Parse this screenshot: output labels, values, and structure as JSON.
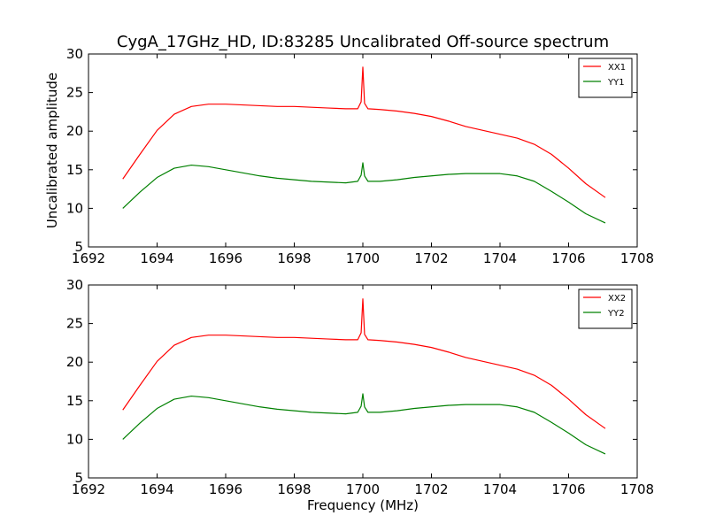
{
  "figure": {
    "title": "CygA_17GHz_HD, ID:83285 Uncalibrated Off-source spectrum"
  },
  "chart_data": [
    {
      "type": "line",
      "title": "CygA_17GHz_HD, ID:83285 Uncalibrated Off-source spectrum",
      "xlabel": "",
      "ylabel": "Uncalibrated amplitude",
      "xlim": [
        1692,
        1708
      ],
      "ylim": [
        5,
        30
      ],
      "xticks": [
        1692,
        1694,
        1696,
        1698,
        1700,
        1702,
        1704,
        1706,
        1708
      ],
      "yticks": [
        5,
        10,
        15,
        20,
        25,
        30
      ],
      "legend": "top-right",
      "grid": false,
      "series": [
        {
          "name": "XX1",
          "color": "#ff0000",
          "x": [
            1693.0,
            1693.5,
            1694.0,
            1694.5,
            1695.0,
            1695.5,
            1696.0,
            1696.5,
            1697.0,
            1697.5,
            1698.0,
            1698.5,
            1699.0,
            1699.5,
            1699.85,
            1699.95,
            1700.0,
            1700.05,
            1700.15,
            1700.5,
            1701.0,
            1701.5,
            1702.0,
            1702.5,
            1703.0,
            1703.5,
            1704.0,
            1704.5,
            1705.0,
            1705.5,
            1706.0,
            1706.5,
            1707.07
          ],
          "y": [
            13.8,
            17.0,
            20.1,
            22.2,
            23.2,
            23.5,
            23.5,
            23.4,
            23.3,
            23.2,
            23.2,
            23.1,
            23.0,
            22.9,
            22.9,
            23.8,
            28.3,
            23.6,
            22.9,
            22.8,
            22.6,
            22.3,
            21.9,
            21.3,
            20.6,
            20.1,
            19.6,
            19.1,
            18.3,
            17.0,
            15.2,
            13.2,
            11.4
          ]
        },
        {
          "name": "YY1",
          "color": "#008000",
          "x": [
            1693.0,
            1693.5,
            1694.0,
            1694.5,
            1695.0,
            1695.5,
            1696.0,
            1696.5,
            1697.0,
            1697.5,
            1698.0,
            1698.5,
            1699.0,
            1699.5,
            1699.85,
            1699.95,
            1700.0,
            1700.05,
            1700.15,
            1700.5,
            1701.0,
            1701.5,
            1702.0,
            1702.5,
            1703.0,
            1703.5,
            1704.0,
            1704.5,
            1705.0,
            1705.5,
            1706.0,
            1706.5,
            1707.07
          ],
          "y": [
            10.0,
            12.1,
            14.0,
            15.2,
            15.6,
            15.4,
            15.0,
            14.6,
            14.2,
            13.9,
            13.7,
            13.5,
            13.4,
            13.3,
            13.5,
            14.3,
            15.9,
            14.2,
            13.5,
            13.5,
            13.7,
            14.0,
            14.2,
            14.4,
            14.5,
            14.5,
            14.5,
            14.2,
            13.5,
            12.2,
            10.8,
            9.3,
            8.1
          ]
        }
      ]
    },
    {
      "type": "line",
      "title": "",
      "xlabel": "Frequency (MHz)",
      "ylabel": "",
      "xlim": [
        1692,
        1708
      ],
      "ylim": [
        5,
        30
      ],
      "xticks": [
        1692,
        1694,
        1696,
        1698,
        1700,
        1702,
        1704,
        1706,
        1708
      ],
      "yticks": [
        5,
        10,
        15,
        20,
        25,
        30
      ],
      "legend": "top-right",
      "grid": false,
      "series": [
        {
          "name": "XX2",
          "color": "#ff0000",
          "x": [
            1693.0,
            1693.5,
            1694.0,
            1694.5,
            1695.0,
            1695.5,
            1696.0,
            1696.5,
            1697.0,
            1697.5,
            1698.0,
            1698.5,
            1699.0,
            1699.5,
            1699.85,
            1699.95,
            1700.0,
            1700.05,
            1700.15,
            1700.5,
            1701.0,
            1701.5,
            1702.0,
            1702.5,
            1703.0,
            1703.5,
            1704.0,
            1704.5,
            1705.0,
            1705.5,
            1706.0,
            1706.5,
            1707.07
          ],
          "y": [
            13.8,
            17.0,
            20.1,
            22.2,
            23.2,
            23.5,
            23.5,
            23.4,
            23.3,
            23.2,
            23.2,
            23.1,
            23.0,
            22.9,
            22.9,
            23.8,
            28.2,
            23.6,
            22.9,
            22.8,
            22.6,
            22.3,
            21.9,
            21.3,
            20.6,
            20.1,
            19.6,
            19.1,
            18.3,
            17.0,
            15.2,
            13.2,
            11.4
          ]
        },
        {
          "name": "YY2",
          "color": "#008000",
          "x": [
            1693.0,
            1693.5,
            1694.0,
            1694.5,
            1695.0,
            1695.5,
            1696.0,
            1696.5,
            1697.0,
            1697.5,
            1698.0,
            1698.5,
            1699.0,
            1699.5,
            1699.85,
            1699.95,
            1700.0,
            1700.05,
            1700.15,
            1700.5,
            1701.0,
            1701.5,
            1702.0,
            1702.5,
            1703.0,
            1703.5,
            1704.0,
            1704.5,
            1705.0,
            1705.5,
            1706.0,
            1706.5,
            1707.07
          ],
          "y": [
            10.0,
            12.1,
            14.0,
            15.2,
            15.6,
            15.4,
            15.0,
            14.6,
            14.2,
            13.9,
            13.7,
            13.5,
            13.4,
            13.3,
            13.5,
            14.3,
            15.9,
            14.2,
            13.5,
            13.5,
            13.7,
            14.0,
            14.2,
            14.4,
            14.5,
            14.5,
            14.5,
            14.2,
            13.5,
            12.2,
            10.8,
            9.3,
            8.1
          ]
        }
      ]
    }
  ]
}
